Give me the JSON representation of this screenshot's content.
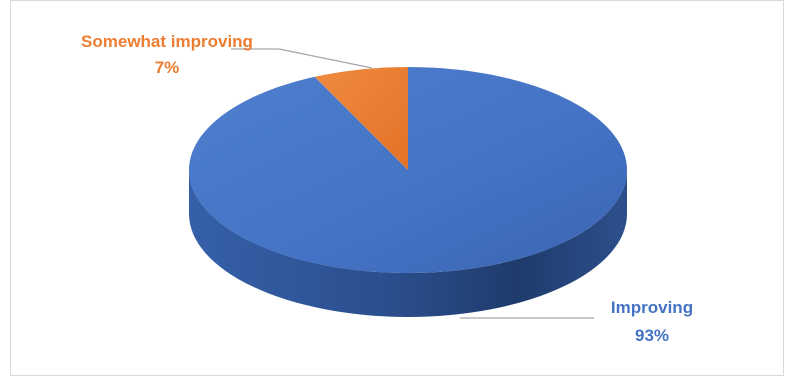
{
  "chart_data": {
    "type": "pie",
    "style": "3d",
    "categories": [
      "Improving",
      "Somewhat improving"
    ],
    "values": [
      93,
      7
    ],
    "colors": [
      "#4472C4",
      "#ED7D31"
    ],
    "labels": [
      {
        "name": "Improving",
        "value_text": "93%"
      },
      {
        "name": "Somewhat improving",
        "value_text": "7%"
      }
    ]
  }
}
